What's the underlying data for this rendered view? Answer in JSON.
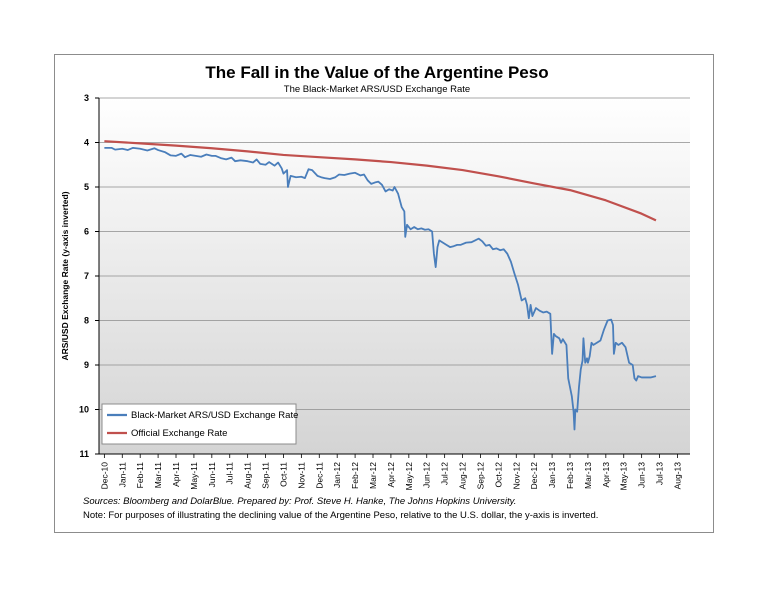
{
  "chart_data": {
    "type": "line",
    "title": "The Fall in the Value of the Argentine Peso",
    "subtitle": "The Black-Market ARS/USD Exchange Rate",
    "ylabel": "ARS/USD Exchange Rate (y-axis inverted)",
    "xlabel": "",
    "ylim": [
      3,
      11
    ],
    "y_inverted": true,
    "y_ticks": [
      "3",
      "4",
      "5",
      "6",
      "7",
      "8",
      "9",
      "10",
      "11"
    ],
    "x_tick_labels": [
      "Dec-10",
      "Jan-11",
      "Feb-11",
      "Mar-11",
      "Apr-11",
      "May-11",
      "Jun-11",
      "Jul-11",
      "Aug-11",
      "Sep-11",
      "Oct-11",
      "Nov-11",
      "Dec-11",
      "Jan-12",
      "Feb-12",
      "Mar-12",
      "Apr-12",
      "May-12",
      "Jun-12",
      "Jul-12",
      "Aug-12",
      "Sep-12",
      "Oct-12",
      "Nov-12",
      "Dec-12",
      "Jan-13",
      "Feb-13",
      "Mar-13",
      "Apr-13",
      "May-13",
      "Jun-13",
      "Jul-13",
      "Aug-13"
    ],
    "legend_position": "bottom-left",
    "series": [
      {
        "name": "Black-Market ARS/USD Exchange Rate",
        "color": "#4a7ebb",
        "points": [
          [
            0,
            4.12
          ],
          [
            0.4,
            4.12
          ],
          [
            0.6,
            4.16
          ],
          [
            1.0,
            4.14
          ],
          [
            1.3,
            4.17
          ],
          [
            1.6,
            4.12
          ],
          [
            2.0,
            4.14
          ],
          [
            2.4,
            4.18
          ],
          [
            2.8,
            4.13
          ],
          [
            3.0,
            4.17
          ],
          [
            3.4,
            4.22
          ],
          [
            3.7,
            4.29
          ],
          [
            4.0,
            4.3
          ],
          [
            4.3,
            4.25
          ],
          [
            4.5,
            4.33
          ],
          [
            4.8,
            4.28
          ],
          [
            5.1,
            4.3
          ],
          [
            5.4,
            4.32
          ],
          [
            5.7,
            4.27
          ],
          [
            6.0,
            4.3
          ],
          [
            6.2,
            4.3
          ],
          [
            6.5,
            4.35
          ],
          [
            6.8,
            4.38
          ],
          [
            7.1,
            4.34
          ],
          [
            7.3,
            4.42
          ],
          [
            7.6,
            4.4
          ],
          [
            8.0,
            4.42
          ],
          [
            8.3,
            4.45
          ],
          [
            8.5,
            4.38
          ],
          [
            8.7,
            4.48
          ],
          [
            9.0,
            4.5
          ],
          [
            9.2,
            4.44
          ],
          [
            9.5,
            4.52
          ],
          [
            9.7,
            4.45
          ],
          [
            9.9,
            4.58
          ],
          [
            10.0,
            4.7
          ],
          [
            10.2,
            4.62
          ],
          [
            10.25,
            5.0
          ],
          [
            10.4,
            4.75
          ],
          [
            10.7,
            4.78
          ],
          [
            11.0,
            4.77
          ],
          [
            11.2,
            4.8
          ],
          [
            11.4,
            4.6
          ],
          [
            11.6,
            4.62
          ],
          [
            11.9,
            4.75
          ],
          [
            12.1,
            4.78
          ],
          [
            12.3,
            4.8
          ],
          [
            12.6,
            4.82
          ],
          [
            12.9,
            4.78
          ],
          [
            13.1,
            4.72
          ],
          [
            13.4,
            4.73
          ],
          [
            13.7,
            4.7
          ],
          [
            14.0,
            4.68
          ],
          [
            14.3,
            4.74
          ],
          [
            14.5,
            4.72
          ],
          [
            14.7,
            4.85
          ],
          [
            14.9,
            4.93
          ],
          [
            15.1,
            4.9
          ],
          [
            15.3,
            4.88
          ],
          [
            15.5,
            4.95
          ],
          [
            15.7,
            5.1
          ],
          [
            15.9,
            5.05
          ],
          [
            16.1,
            5.08
          ],
          [
            16.2,
            5.0
          ],
          [
            16.4,
            5.15
          ],
          [
            16.6,
            5.45
          ],
          [
            16.75,
            5.55
          ],
          [
            16.8,
            6.12
          ],
          [
            16.9,
            5.85
          ],
          [
            17.1,
            5.95
          ],
          [
            17.3,
            5.9
          ],
          [
            17.5,
            5.95
          ],
          [
            17.7,
            5.93
          ],
          [
            17.9,
            5.96
          ],
          [
            18.1,
            5.95
          ],
          [
            18.3,
            6.0
          ],
          [
            18.4,
            6.5
          ],
          [
            18.5,
            6.8
          ],
          [
            18.6,
            6.35
          ],
          [
            18.7,
            6.2
          ],
          [
            18.9,
            6.25
          ],
          [
            19.1,
            6.3
          ],
          [
            19.3,
            6.35
          ],
          [
            19.5,
            6.33
          ],
          [
            19.7,
            6.3
          ],
          [
            19.9,
            6.3
          ],
          [
            20.2,
            6.25
          ],
          [
            20.5,
            6.24
          ],
          [
            20.7,
            6.2
          ],
          [
            20.9,
            6.16
          ],
          [
            21.1,
            6.22
          ],
          [
            21.3,
            6.32
          ],
          [
            21.5,
            6.3
          ],
          [
            21.7,
            6.4
          ],
          [
            21.9,
            6.38
          ],
          [
            22.1,
            6.42
          ],
          [
            22.3,
            6.4
          ],
          [
            22.5,
            6.5
          ],
          [
            22.7,
            6.68
          ],
          [
            22.9,
            6.95
          ],
          [
            23.1,
            7.2
          ],
          [
            23.3,
            7.55
          ],
          [
            23.5,
            7.5
          ],
          [
            23.6,
            7.65
          ],
          [
            23.7,
            7.95
          ],
          [
            23.8,
            7.65
          ],
          [
            23.9,
            7.9
          ],
          [
            24.1,
            7.72
          ],
          [
            24.3,
            7.78
          ],
          [
            24.5,
            7.82
          ],
          [
            24.7,
            7.8
          ],
          [
            24.9,
            7.85
          ],
          [
            25.0,
            8.75
          ],
          [
            25.1,
            8.3
          ],
          [
            25.2,
            8.35
          ],
          [
            25.4,
            8.4
          ],
          [
            25.5,
            8.5
          ],
          [
            25.6,
            8.42
          ],
          [
            25.8,
            8.55
          ],
          [
            25.9,
            9.3
          ],
          [
            26.0,
            9.5
          ],
          [
            26.1,
            9.7
          ],
          [
            26.2,
            10.05
          ],
          [
            26.25,
            10.45
          ],
          [
            26.3,
            10.0
          ],
          [
            26.4,
            10.05
          ],
          [
            26.5,
            9.5
          ],
          [
            26.6,
            9.1
          ],
          [
            26.7,
            8.9
          ],
          [
            26.75,
            8.4
          ],
          [
            26.85,
            8.95
          ],
          [
            26.95,
            8.85
          ],
          [
            27.0,
            8.95
          ],
          [
            27.1,
            8.8
          ],
          [
            27.2,
            8.5
          ],
          [
            27.3,
            8.55
          ],
          [
            27.5,
            8.5
          ],
          [
            27.7,
            8.45
          ],
          [
            27.9,
            8.2
          ],
          [
            28.1,
            8.0
          ],
          [
            28.3,
            7.98
          ],
          [
            28.4,
            8.1
          ],
          [
            28.45,
            8.75
          ],
          [
            28.55,
            8.5
          ],
          [
            28.7,
            8.55
          ],
          [
            28.9,
            8.5
          ],
          [
            29.1,
            8.6
          ],
          [
            29.3,
            8.95
          ],
          [
            29.5,
            9.0
          ],
          [
            29.6,
            9.3
          ],
          [
            29.7,
            9.35
          ],
          [
            29.8,
            9.25
          ],
          [
            30.0,
            9.28
          ],
          [
            30.2,
            9.28
          ],
          [
            30.5,
            9.28
          ],
          [
            30.8,
            9.25
          ]
        ]
      },
      {
        "name": "Official Exchange Rate",
        "color": "#c0504d",
        "points": [
          [
            0,
            3.97
          ],
          [
            2,
            4.02
          ],
          [
            4,
            4.07
          ],
          [
            6,
            4.13
          ],
          [
            8,
            4.2
          ],
          [
            10,
            4.28
          ],
          [
            12,
            4.33
          ],
          [
            14,
            4.38
          ],
          [
            16,
            4.44
          ],
          [
            18,
            4.52
          ],
          [
            20,
            4.62
          ],
          [
            22,
            4.76
          ],
          [
            24,
            4.92
          ],
          [
            26,
            5.07
          ],
          [
            28,
            5.3
          ],
          [
            30,
            5.6
          ],
          [
            30.8,
            5.75
          ]
        ]
      }
    ]
  },
  "footer": {
    "source": "Sources: Bloomberg and DolarBlue. Prepared by: Prof. Steve H. Hanke, The Johns Hopkins University.",
    "note": "Note: For purposes of illustrating the declining value of the Argentine Peso, relative to the U.S. dollar, the y-axis is inverted."
  }
}
